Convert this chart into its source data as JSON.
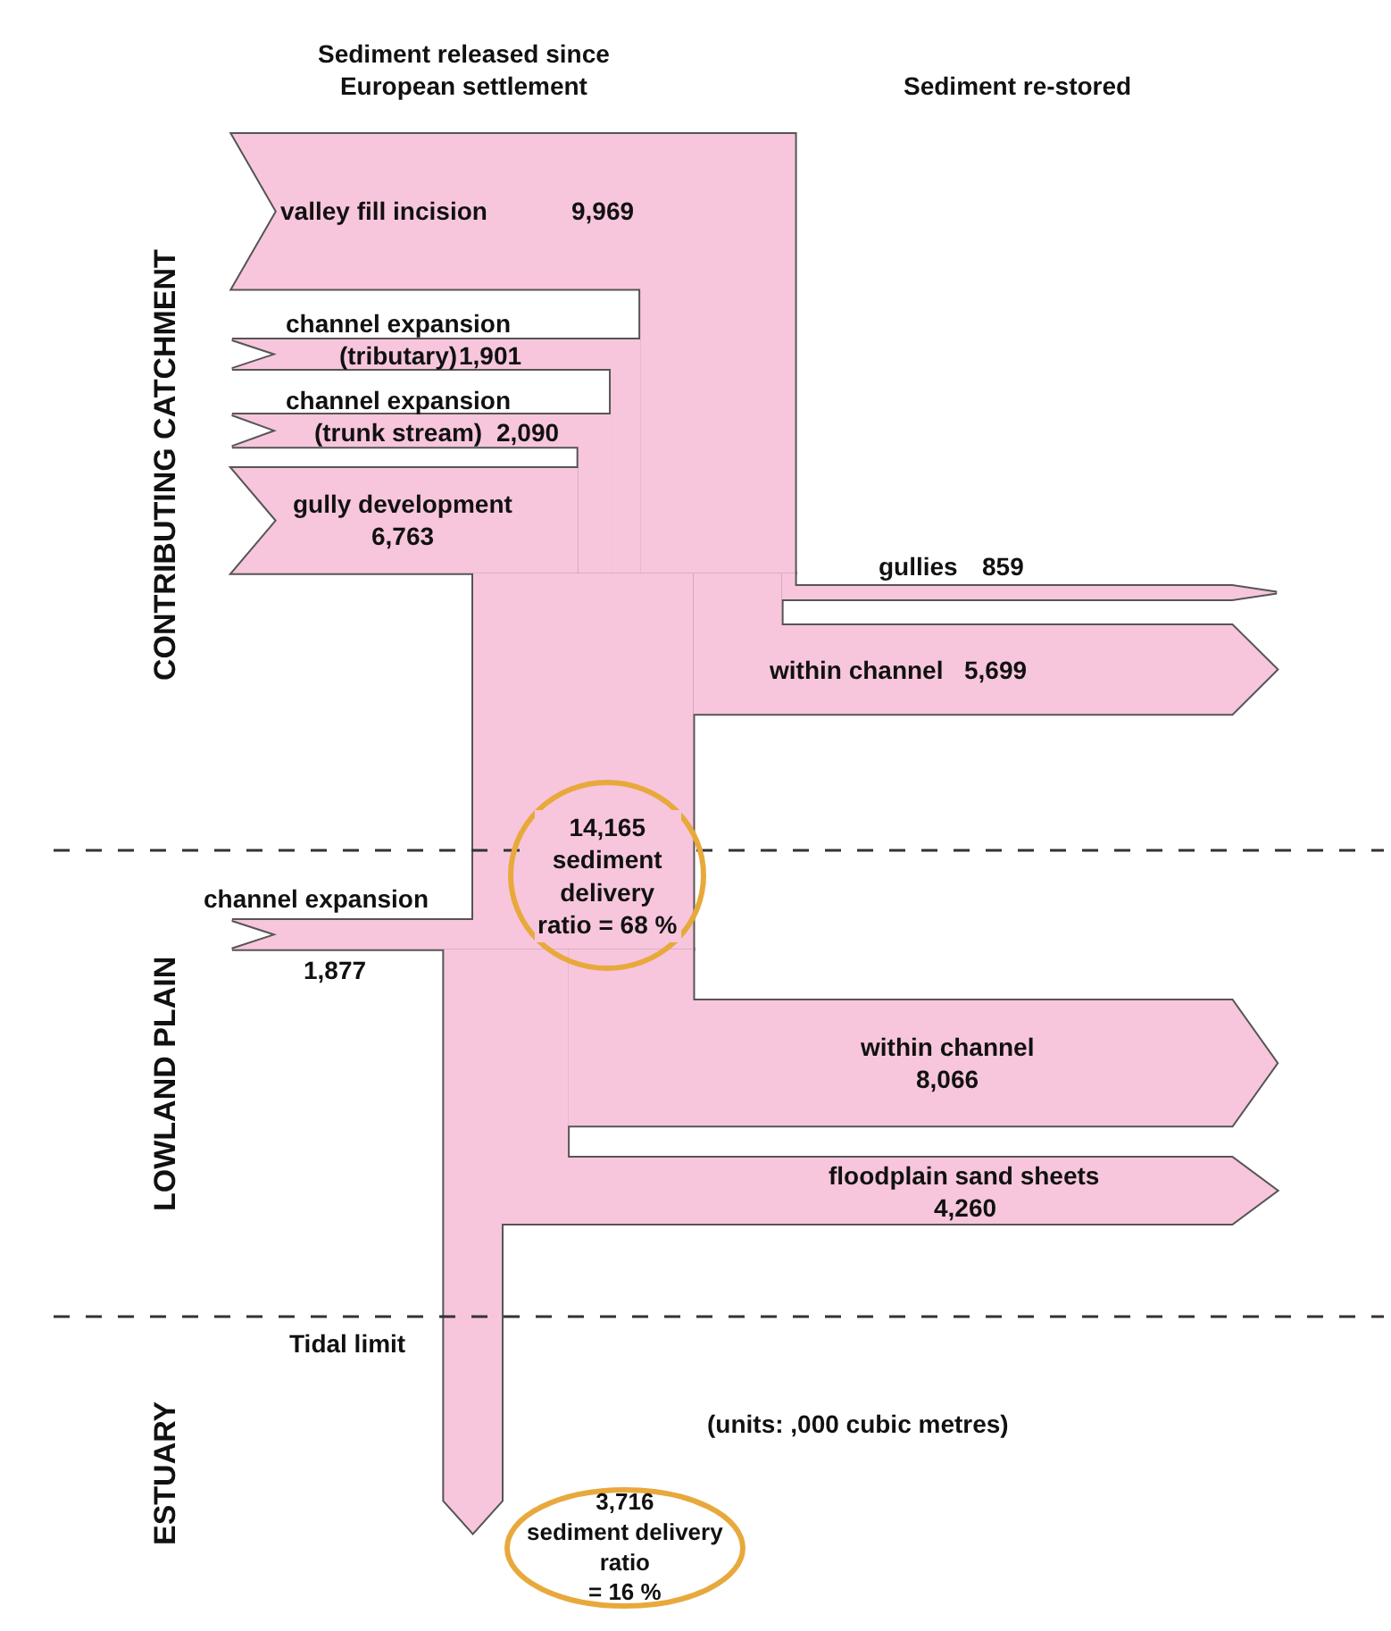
{
  "chart_data": {
    "type": "other",
    "categories": [
      "valley fill incision",
      "channel expansion\n(tributary)",
      "channel expansion\n(trunk stream)",
      "gully development",
      "gullies",
      "within channel",
      "channel expansion",
      "within channel",
      "floodplain sand sheets"
    ],
    "values": [
      9969,
      1901,
      2090,
      6763,
      859,
      5699,
      1877,
      8066,
      4260
    ],
    "value_labels": [
      "9,969",
      "1,901",
      "2,090",
      "6,763",
      "859",
      "5,699",
      "1,877",
      "8,066",
      "4,260"
    ],
    "color": "#f7c6dc",
    "annotations": [
      "Sediment released since\nEuropean settlement",
      "Sediment re-stored",
      "CONTRIBUTING CATCHMENT",
      "LOWLAND PLAIN",
      "ESTUARY",
      "Tidal limit",
      "(units: ,000 cubic metres)",
      "14,165\nsediment\ndelivery\nratio = 68 %",
      "3,716\nsediment delivery\nratio\n= 16 %"
    ]
  }
}
